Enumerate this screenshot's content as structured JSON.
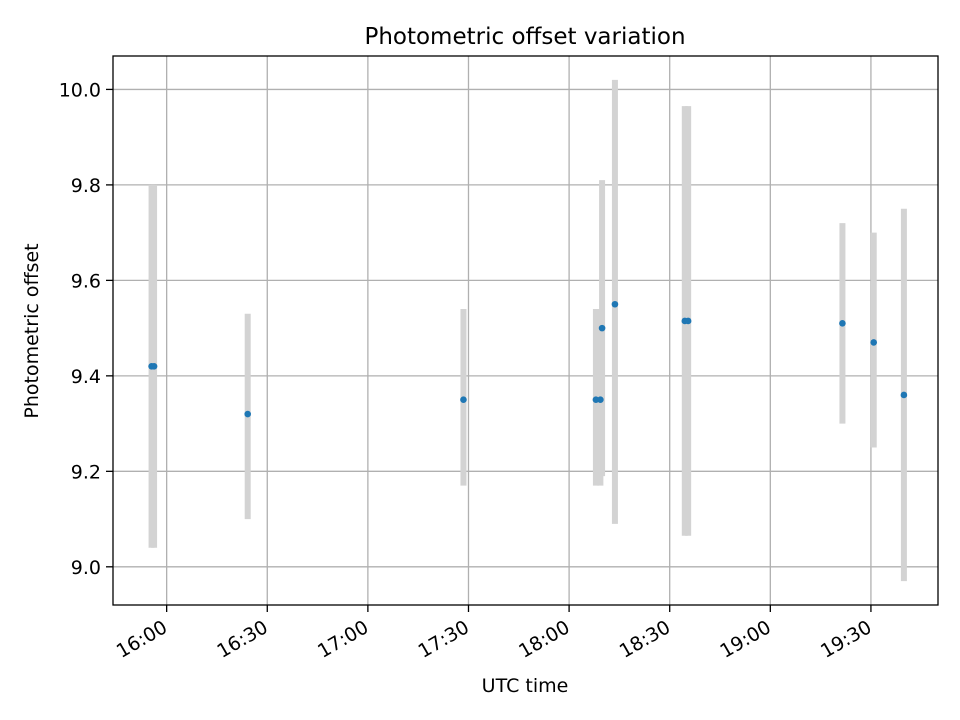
{
  "chart_data": {
    "type": "scatter",
    "title": "Photometric offset variation",
    "xlabel": "UTC time",
    "ylabel": "Photometric offset",
    "x_axis_kind": "time",
    "xlim": [
      "15:44",
      "19:50"
    ],
    "ylim": [
      8.92,
      10.07
    ],
    "grid": true,
    "x_ticks": [
      "16:00",
      "16:30",
      "17:00",
      "17:30",
      "18:00",
      "18:30",
      "19:00",
      "19:30"
    ],
    "y_ticks": [
      "9.0",
      "9.2",
      "9.4",
      "9.6",
      "9.8",
      "10.0"
    ],
    "errorbar_color": "#d3d3d3",
    "point_color": "#1f77b4",
    "series": [
      {
        "points": [
          {
            "x": "15:55:30",
            "y": 9.42,
            "err_low": 9.04,
            "err_high": 9.8
          },
          {
            "x": "15:56:15",
            "y": 9.42,
            "err_low": 9.04,
            "err_high": 9.8
          },
          {
            "x": "16:24:10",
            "y": 9.32,
            "err_low": 9.1,
            "err_high": 9.53
          },
          {
            "x": "17:28:30",
            "y": 9.35,
            "err_low": 9.17,
            "err_high": 9.54
          },
          {
            "x": "18:08:00",
            "y": 9.35,
            "err_low": 9.17,
            "err_high": 9.54
          },
          {
            "x": "18:09:20",
            "y": 9.35,
            "err_low": 9.17,
            "err_high": 9.54
          },
          {
            "x": "18:09:50",
            "y": 9.5,
            "err_low": 9.19,
            "err_high": 9.81
          },
          {
            "x": "18:13:40",
            "y": 9.55,
            "err_low": 9.09,
            "err_high": 10.02
          },
          {
            "x": "18:34:30",
            "y": 9.515,
            "err_low": 9.065,
            "err_high": 9.965
          },
          {
            "x": "18:35:30",
            "y": 9.515,
            "err_low": 9.065,
            "err_high": 9.965
          },
          {
            "x": "19:21:30",
            "y": 9.51,
            "err_low": 9.3,
            "err_high": 9.72
          },
          {
            "x": "19:30:50",
            "y": 9.47,
            "err_low": 9.25,
            "err_high": 9.7
          },
          {
            "x": "19:39:50",
            "y": 9.36,
            "err_low": 8.97,
            "err_high": 9.75
          }
        ]
      }
    ]
  }
}
